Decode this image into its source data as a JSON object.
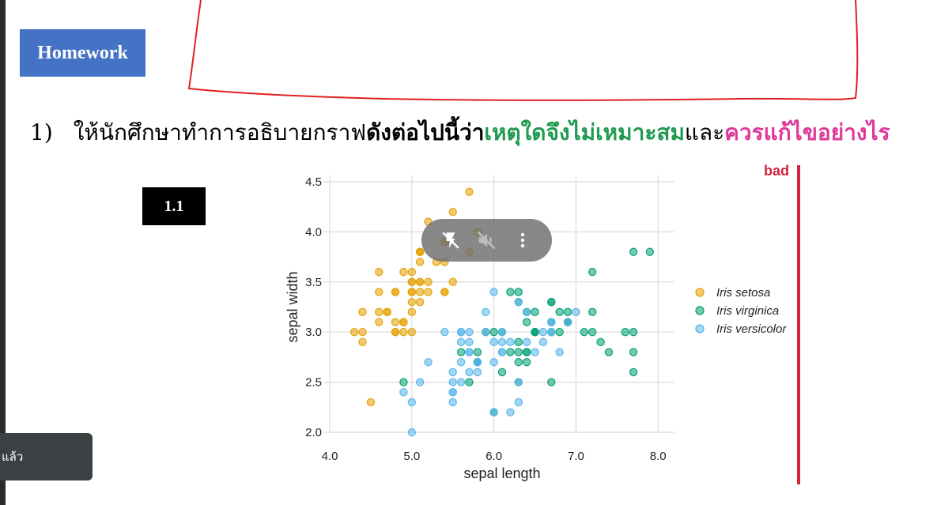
{
  "homework_label": "Homework",
  "question": {
    "number": "1)",
    "part1": "ให้นักศึกษาทำการอธิบายกราฟ",
    "part2": "ดังต่อไปนี้ว่า",
    "part3": "เหตุใดจึงไม่เหมาะสม",
    "part4": "และ",
    "part5": "ควรแก้ไขอย่างไร"
  },
  "item_label": "1.1",
  "verdict_label": "bad",
  "toast_text": "แล้ว",
  "overlay": {
    "icons": [
      "flash-off-icon",
      "mute-icon",
      "more-vert-icon"
    ]
  },
  "colors": {
    "setosa": "#e69f00",
    "virginica": "#009e73",
    "versicolor": "#56b4e9",
    "bad": "#d1243d"
  },
  "chart_data": {
    "type": "scatter",
    "xlabel": "sepal length",
    "ylabel": "sepal width",
    "xlim": [
      4.0,
      8.2
    ],
    "ylim": [
      2.0,
      4.5
    ],
    "xticks": [
      "4.0",
      "5.0",
      "6.0",
      "7.0",
      "8.0"
    ],
    "yticks": [
      "2.0",
      "2.5",
      "3.0",
      "3.5",
      "4.0",
      "4.5"
    ],
    "grid": true,
    "legend_position": "right",
    "series": [
      {
        "name": "Iris setosa",
        "color": "#e69f00",
        "points": [
          [
            5.1,
            3.5
          ],
          [
            4.9,
            3.0
          ],
          [
            4.7,
            3.2
          ],
          [
            4.6,
            3.1
          ],
          [
            5.0,
            3.6
          ],
          [
            5.4,
            3.9
          ],
          [
            4.6,
            3.4
          ],
          [
            5.0,
            3.4
          ],
          [
            4.4,
            2.9
          ],
          [
            4.9,
            3.1
          ],
          [
            5.4,
            3.7
          ],
          [
            4.8,
            3.4
          ],
          [
            4.8,
            3.0
          ],
          [
            4.3,
            3.0
          ],
          [
            5.8,
            4.0
          ],
          [
            5.7,
            4.4
          ],
          [
            5.4,
            3.9
          ],
          [
            5.1,
            3.5
          ],
          [
            5.7,
            3.8
          ],
          [
            5.1,
            3.8
          ],
          [
            5.4,
            3.4
          ],
          [
            5.1,
            3.7
          ],
          [
            4.6,
            3.6
          ],
          [
            5.1,
            3.3
          ],
          [
            4.8,
            3.4
          ],
          [
            5.0,
            3.0
          ],
          [
            5.0,
            3.4
          ],
          [
            5.2,
            3.5
          ],
          [
            5.2,
            3.4
          ],
          [
            4.7,
            3.2
          ],
          [
            4.8,
            3.1
          ],
          [
            5.4,
            3.4
          ],
          [
            5.2,
            4.1
          ],
          [
            5.5,
            4.2
          ],
          [
            4.9,
            3.1
          ],
          [
            5.0,
            3.2
          ],
          [
            5.5,
            3.5
          ],
          [
            4.9,
            3.6
          ],
          [
            4.4,
            3.0
          ],
          [
            5.1,
            3.4
          ],
          [
            5.0,
            3.5
          ],
          [
            4.5,
            2.3
          ],
          [
            4.4,
            3.2
          ],
          [
            5.0,
            3.5
          ],
          [
            5.1,
            3.8
          ],
          [
            4.8,
            3.0
          ],
          [
            5.1,
            3.8
          ],
          [
            4.6,
            3.2
          ],
          [
            5.3,
            3.7
          ],
          [
            5.0,
            3.3
          ]
        ]
      },
      {
        "name": "Iris virginica",
        "color": "#009e73",
        "points": [
          [
            6.3,
            3.3
          ],
          [
            5.8,
            2.7
          ],
          [
            7.1,
            3.0
          ],
          [
            6.3,
            2.9
          ],
          [
            6.5,
            3.0
          ],
          [
            7.6,
            3.0
          ],
          [
            4.9,
            2.5
          ],
          [
            7.3,
            2.9
          ],
          [
            6.7,
            2.5
          ],
          [
            7.2,
            3.6
          ],
          [
            6.5,
            3.2
          ],
          [
            6.4,
            2.7
          ],
          [
            6.8,
            3.0
          ],
          [
            5.7,
            2.5
          ],
          [
            5.8,
            2.8
          ],
          [
            6.4,
            3.2
          ],
          [
            6.5,
            3.0
          ],
          [
            7.7,
            3.8
          ],
          [
            7.7,
            2.6
          ],
          [
            6.0,
            2.2
          ],
          [
            6.9,
            3.2
          ],
          [
            5.6,
            2.8
          ],
          [
            7.7,
            2.8
          ],
          [
            6.3,
            2.7
          ],
          [
            6.7,
            3.3
          ],
          [
            7.2,
            3.2
          ],
          [
            6.2,
            2.8
          ],
          [
            6.1,
            3.0
          ],
          [
            6.4,
            2.8
          ],
          [
            7.2,
            3.0
          ],
          [
            7.4,
            2.8
          ],
          [
            7.9,
            3.8
          ],
          [
            6.4,
            2.8
          ],
          [
            6.3,
            2.8
          ],
          [
            6.1,
            2.6
          ],
          [
            7.7,
            3.0
          ],
          [
            6.3,
            3.4
          ],
          [
            6.4,
            3.1
          ],
          [
            6.0,
            3.0
          ],
          [
            6.9,
            3.1
          ],
          [
            6.7,
            3.1
          ],
          [
            6.9,
            3.1
          ],
          [
            5.8,
            2.7
          ],
          [
            6.8,
            3.2
          ],
          [
            6.7,
            3.3
          ],
          [
            6.7,
            3.0
          ],
          [
            6.3,
            2.5
          ],
          [
            6.5,
            3.0
          ],
          [
            6.2,
            3.4
          ],
          [
            5.9,
            3.0
          ]
        ]
      },
      {
        "name": "Iris versicolor",
        "color": "#56b4e9",
        "points": [
          [
            7.0,
            3.2
          ],
          [
            6.4,
            3.2
          ],
          [
            6.9,
            3.1
          ],
          [
            5.5,
            2.3
          ],
          [
            6.5,
            2.8
          ],
          [
            5.7,
            2.8
          ],
          [
            6.3,
            3.3
          ],
          [
            4.9,
            2.4
          ],
          [
            6.6,
            2.9
          ],
          [
            5.2,
            2.7
          ],
          [
            5.0,
            2.0
          ],
          [
            5.9,
            3.0
          ],
          [
            6.0,
            2.2
          ],
          [
            6.1,
            2.9
          ],
          [
            5.6,
            2.9
          ],
          [
            6.7,
            3.1
          ],
          [
            5.6,
            3.0
          ],
          [
            5.8,
            2.7
          ],
          [
            6.2,
            2.2
          ],
          [
            5.6,
            2.5
          ],
          [
            5.9,
            3.2
          ],
          [
            6.1,
            2.8
          ],
          [
            6.3,
            2.5
          ],
          [
            6.1,
            2.8
          ],
          [
            6.4,
            2.9
          ],
          [
            6.6,
            3.0
          ],
          [
            6.8,
            2.8
          ],
          [
            6.7,
            3.0
          ],
          [
            6.0,
            2.9
          ],
          [
            5.7,
            2.6
          ],
          [
            5.5,
            2.4
          ],
          [
            5.5,
            2.4
          ],
          [
            5.8,
            2.7
          ],
          [
            6.0,
            2.7
          ],
          [
            5.4,
            3.0
          ],
          [
            6.0,
            3.4
          ],
          [
            6.7,
            3.1
          ],
          [
            6.3,
            2.3
          ],
          [
            5.6,
            3.0
          ],
          [
            5.5,
            2.5
          ],
          [
            5.5,
            2.6
          ],
          [
            6.1,
            3.0
          ],
          [
            5.8,
            2.6
          ],
          [
            5.0,
            2.3
          ],
          [
            5.6,
            2.7
          ],
          [
            5.7,
            3.0
          ],
          [
            5.7,
            2.9
          ],
          [
            6.2,
            2.9
          ],
          [
            5.1,
            2.5
          ],
          [
            5.7,
            2.8
          ]
        ]
      }
    ]
  }
}
